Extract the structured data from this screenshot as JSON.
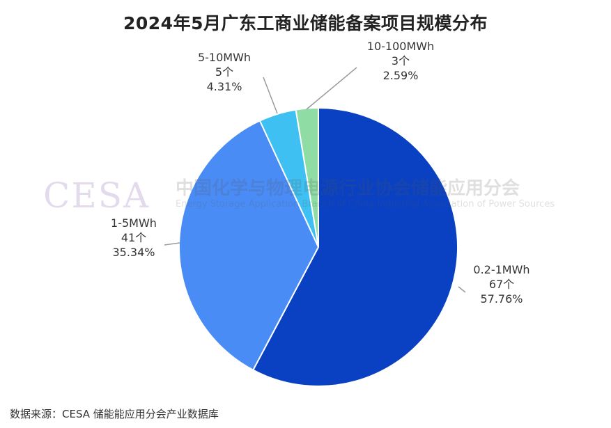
{
  "title": "2024年5月广东工商业储能备案项目规模分布",
  "source": "数据来源：CESA 储能能应用分会产业数据库",
  "watermark": {
    "logo": "CESA",
    "cn": "中国化学与物理电源行业协会储能应用分会",
    "en": "Energy Storage Application Branch of China Industrial Association of Power Sources"
  },
  "chart_data": {
    "type": "pie",
    "title": "2024年5月广东工商业储能备案项目规模分布",
    "slices": [
      {
        "label": "0.2-1MWh",
        "count": "67个",
        "percent": "57.76%",
        "value": 57.76,
        "color": "#0a41c2"
      },
      {
        "label": "1-5MWh",
        "count": "41个",
        "percent": "35.34%",
        "value": 35.34,
        "color": "#4a8cf5"
      },
      {
        "label": "5-10MWh",
        "count": "5个",
        "percent": "4.31%",
        "value": 4.31,
        "color": "#3fc0f2"
      },
      {
        "label": "10-100MWh",
        "count": "3个",
        "percent": "2.59%",
        "value": 2.59,
        "color": "#8fdca4"
      }
    ]
  }
}
